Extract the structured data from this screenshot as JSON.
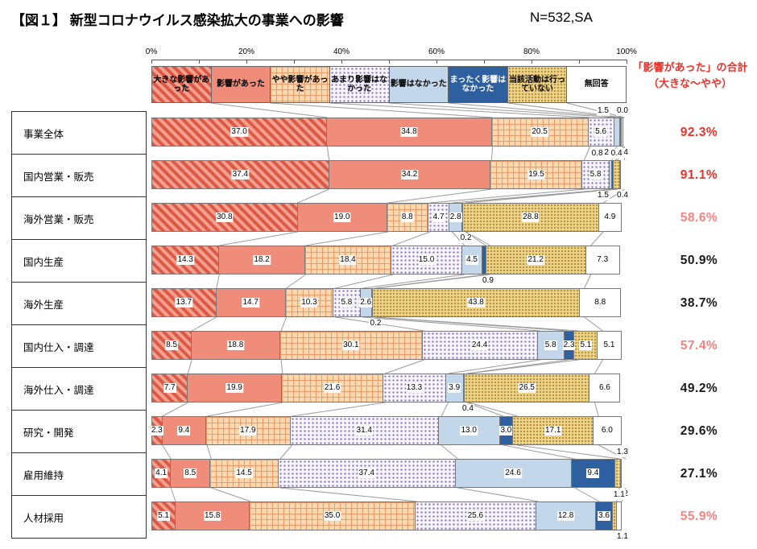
{
  "header": {
    "title": "【図１】 新型コロナウイルス感染拡大の事業への影響",
    "sample_size": "N=532,SA"
  },
  "chart_data": {
    "type": "bar",
    "stacked": true,
    "orientation": "horizontal",
    "unit": "%",
    "x_axis": {
      "tick_labels": [
        "0%",
        "20%",
        "40%",
        "60%",
        "80%",
        "100%"
      ],
      "range": [
        0,
        100
      ],
      "minor_tick_step": 10
    },
    "series": [
      {
        "name": "大きな影響があった",
        "pattern": "diagonal-stripe",
        "fill": "#dc5a45",
        "fill2": "#f2a190"
      },
      {
        "name": "影響があった",
        "pattern": "solid",
        "fill": "#f08d7a"
      },
      {
        "name": "やや影響があった",
        "pattern": "crosshatch",
        "fill": "#fbd8b0",
        "line": "#e89a68"
      },
      {
        "name": "あまり影響はなかった",
        "pattern": "dot-grid",
        "fill": "#f6f3fb",
        "dot": "#7e6eb4",
        "dot_size": 5
      },
      {
        "name": "影響はなかった",
        "pattern": "solid",
        "fill": "#c3d7eb"
      },
      {
        "name": "まったく影響はなかった",
        "pattern": "solid",
        "fill": "#2e5f9e",
        "text_color": "#ffffff"
      },
      {
        "name": "当該活動は行っていない",
        "pattern": "dot-grid",
        "fill": "#ebd288",
        "dot": "#b38f3c",
        "dot_size": 4
      },
      {
        "name": "無回答",
        "pattern": "solid",
        "fill": "#ffffff"
      }
    ],
    "categories": [
      "事業全体",
      "国内営業・販売",
      "海外営業・販売",
      "国内生産",
      "海外生産",
      "国内仕入・調達",
      "海外仕入・調達",
      "研究・開発",
      "雇用維持",
      "人材採用"
    ],
    "rows": [
      [
        37.0,
        34.8,
        20.5,
        5.6,
        1.5,
        0.0,
        0.2,
        0.4
      ],
      [
        37.4,
        34.2,
        19.5,
        5.8,
        0.8,
        0.4,
        1.5,
        0.4
      ],
      [
        30.8,
        19.0,
        8.8,
        4.7,
        2.8,
        0.2,
        28.8,
        4.9
      ],
      [
        14.3,
        18.2,
        18.4,
        15.0,
        4.5,
        0.9,
        21.2,
        7.3
      ],
      [
        13.7,
        14.7,
        10.3,
        5.8,
        2.6,
        0.2,
        43.8,
        8.8
      ],
      [
        8.5,
        18.8,
        30.1,
        24.4,
        5.8,
        2.3,
        5.1,
        5.1
      ],
      [
        7.7,
        19.9,
        21.6,
        13.3,
        3.9,
        0.4,
        26.5,
        6.6
      ],
      [
        2.3,
        9.4,
        17.9,
        31.4,
        13.0,
        3.0,
        17.1,
        6.0
      ],
      [
        4.1,
        8.5,
        14.5,
        37.4,
        24.6,
        9.4,
        1.3,
        0.2
      ],
      [
        5.1,
        15.8,
        35.0,
        25.6,
        12.8,
        3.6,
        1.1,
        1.1
      ]
    ],
    "totals": {
      "header_line1": "「影響があった」の合計",
      "header_line2": "（大きな～やや）",
      "header_color": "#e8312a",
      "values": [
        {
          "text": "92.3%",
          "color": "#e8312a"
        },
        {
          "text": "91.1%",
          "color": "#e8312a"
        },
        {
          "text": "58.6%",
          "color": "#f5847f"
        },
        {
          "text": "50.9%",
          "color": "#1a1a1a"
        },
        {
          "text": "38.7%",
          "color": "#1a1a1a"
        },
        {
          "text": "57.4%",
          "color": "#f5847f"
        },
        {
          "text": "49.2%",
          "color": "#1a1a1a"
        },
        {
          "text": "29.6%",
          "color": "#1a1a1a"
        },
        {
          "text": "27.1%",
          "color": "#1a1a1a"
        },
        {
          "text": "55.9%",
          "color": "#f5847f"
        }
      ]
    }
  }
}
